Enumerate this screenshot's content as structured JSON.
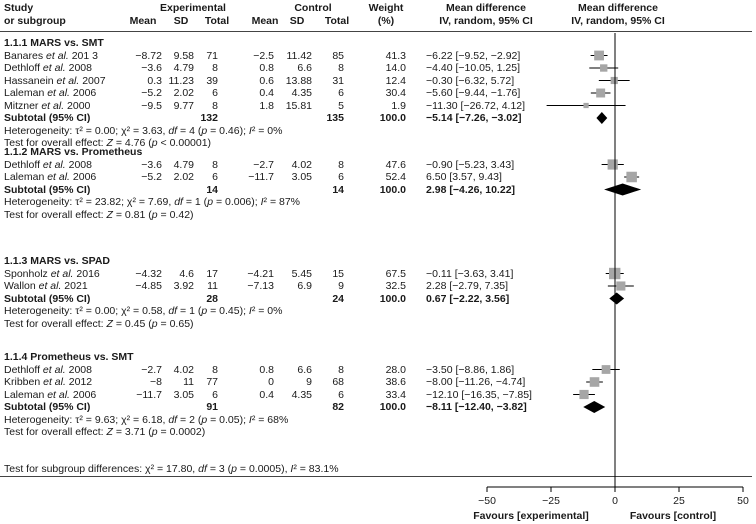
{
  "header": {
    "study_line1": "Study",
    "study_line2": "or subgroup",
    "experimental": "Experimental",
    "control": "Control",
    "mean": "Mean",
    "sd": "SD",
    "total": "Total",
    "weight_line1": "Weight",
    "weight_line2": "(%)",
    "md_line1": "Mean difference",
    "md_line2": "IV, random, 95% CI",
    "plot_line1": "Mean difference",
    "plot_line2": "IV, random, 95% CI"
  },
  "groups": [
    {
      "title": "1.1.1 MARS vs. SMT",
      "studies": [
        {
          "name": "Banares ",
          "etal": "et al.",
          "year": " 201 3",
          "e_mean": "−8.72",
          "e_sd": "9.58",
          "e_total": "71",
          "c_mean": "−2.5",
          "c_sd": "11.42",
          "c_total": "85",
          "weight": "41.3",
          "ci": "−6.22 [−9.52, −2.92]",
          "md": -6.22,
          "lo": -9.52,
          "hi": -2.92,
          "w": 41.3
        },
        {
          "name": "Dethloff ",
          "etal": "et al.",
          "year": " 2008",
          "e_mean": "−3.6",
          "e_sd": "4.79",
          "e_total": "8",
          "c_mean": "0.8",
          "c_sd": "6.6",
          "c_total": "8",
          "weight": "14.0",
          "ci": "−4.40 [−10.05, 1.25]",
          "md": -4.4,
          "lo": -10.05,
          "hi": 1.25,
          "w": 14.0
        },
        {
          "name": "Hassanein ",
          "etal": "et al.",
          "year": " 2007",
          "e_mean": "0.3",
          "e_sd": "11.23",
          "e_total": "39",
          "c_mean": "0.6",
          "c_sd": "13.88",
          "c_total": "31",
          "weight": "12.4",
          "ci": "−0.30 [−6.32, 5.72]",
          "md": -0.3,
          "lo": -6.32,
          "hi": 5.72,
          "w": 12.4
        },
        {
          "name": "Laleman ",
          "etal": "et al.",
          "year": " 2006",
          "e_mean": "−5.2",
          "e_sd": "2.02",
          "e_total": "6",
          "c_mean": "0.4",
          "c_sd": "4.35",
          "c_total": "6",
          "weight": "30.4",
          "ci": "−5.60 [−9.44, −1.76]",
          "md": -5.6,
          "lo": -9.44,
          "hi": -1.76,
          "w": 30.4
        },
        {
          "name": "Mitzner ",
          "etal": "et al.",
          "year": " 2000",
          "e_mean": "−9.5",
          "e_sd": "9.77",
          "e_total": "8",
          "c_mean": "1.8",
          "c_sd": "15.81",
          "c_total": "5",
          "weight": "1.9",
          "ci": "−11.30 [−26.72, 4.12]",
          "md": -11.3,
          "lo": -26.72,
          "hi": 4.12,
          "w": 1.9
        }
      ],
      "subtotal": {
        "label": "Subtotal (95% CI)",
        "e_total": "132",
        "c_total": "135",
        "weight": "100.0",
        "ci": "−5.14 [−7.26, −3.02]",
        "md": -5.14,
        "lo": -7.26,
        "hi": -3.02
      },
      "het_a": "Heterogeneity: τ² = 0.00; χ² = 3.63, ",
      "het_df": "df",
      "het_b": " = 4 (",
      "het_p": "p",
      "het_c": " = 0.46); ",
      "het_i": "I",
      "het_d": "² = 0%",
      "eff_a": "Test for overall effect: ",
      "eff_z": "Z",
      "eff_b": " = 4.76 (",
      "eff_p": "p",
      "eff_c": " < 0.00001)"
    },
    {
      "title": "1.1.2 MARS vs. Prometheus",
      "studies": [
        {
          "name": "Dethloff ",
          "etal": "et al.",
          "year": " 2008",
          "e_mean": "−3.6",
          "e_sd": "4.79",
          "e_total": "8",
          "c_mean": "−2.7",
          "c_sd": "4.02",
          "c_total": "8",
          "weight": "47.6",
          "ci": "−0.90 [−5.23, 3.43]",
          "md": -0.9,
          "lo": -5.23,
          "hi": 3.43,
          "w": 47.6
        },
        {
          "name": "Laleman ",
          "etal": "et al.",
          "year": " 2006",
          "e_mean": "−5.2",
          "e_sd": "2.02",
          "e_total": "6",
          "c_mean": "−11.7",
          "c_sd": "3.05",
          "c_total": "6",
          "weight": "52.4",
          "ci": "6.50 [3.57, 9.43]",
          "md": 6.5,
          "lo": 3.57,
          "hi": 9.43,
          "w": 52.4
        }
      ],
      "subtotal": {
        "label": "Subtotal (95% CI)",
        "e_total": "14",
        "c_total": "14",
        "weight": "100.0",
        "ci": "2.98 [−4.26, 10.22]",
        "md": 2.98,
        "lo": -4.26,
        "hi": 10.22
      },
      "het_a": "Heterogeneity: τ² = 23.82; χ² = 7.69, ",
      "het_df": "df",
      "het_b": " = 1 (",
      "het_p": "p",
      "het_c": " = 0.006); ",
      "het_i": "I",
      "het_d": "² = 87%",
      "eff_a": "Test for overall effect: ",
      "eff_z": "Z",
      "eff_b": " = 0.81 (",
      "eff_p": "p",
      "eff_c": " = 0.42)"
    },
    {
      "title": "1.1.3 MARS vs. SPAD",
      "studies": [
        {
          "name": "Sponholz ",
          "etal": "et al.",
          "year": " 2016",
          "e_mean": "−4.32",
          "e_sd": "4.6",
          "e_total": "17",
          "c_mean": "−4.21",
          "c_sd": "5.45",
          "c_total": "15",
          "weight": "67.5",
          "ci": "−0.11 [−3.63, 3.41]",
          "md": -0.11,
          "lo": -3.63,
          "hi": 3.41,
          "w": 67.5
        },
        {
          "name": "Wallon ",
          "etal": "et al.",
          "year": " 2021",
          "e_mean": "−4.85",
          "e_sd": "3.92",
          "e_total": "11",
          "c_mean": "−7.13",
          "c_sd": "6.9",
          "c_total": "9",
          "weight": "32.5",
          "ci": "2.28 [−2.79, 7.35]",
          "md": 2.28,
          "lo": -2.79,
          "hi": 7.35,
          "w": 32.5
        }
      ],
      "subtotal": {
        "label": "Subtotal (95% CI)",
        "e_total": "28",
        "c_total": "24",
        "weight": "100.0",
        "ci": "0.67 [−2.22, 3.56]",
        "md": 0.67,
        "lo": -2.22,
        "hi": 3.56
      },
      "het_a": "Heterogeneity: τ² = 0.00; χ² = 0.58, ",
      "het_df": "df",
      "het_b": " = 1 (",
      "het_p": "p",
      "het_c": " = 0.45); ",
      "het_i": "I",
      "het_d": "² = 0%",
      "eff_a": "Test for overall effect: ",
      "eff_z": "Z",
      "eff_b": " = 0.45 (",
      "eff_p": "p",
      "eff_c": " = 0.65)"
    },
    {
      "title": "1.1.4 Prometheus vs. SMT",
      "studies": [
        {
          "name": "Dethloff ",
          "etal": "et al.",
          "year": " 2008",
          "e_mean": "−2.7",
          "e_sd": "4.02",
          "e_total": "8",
          "c_mean": "0.8",
          "c_sd": "6.6",
          "c_total": "8",
          "weight": "28.0",
          "ci": "−3.50 [−8.86, 1.86]",
          "md": -3.5,
          "lo": -8.86,
          "hi": 1.86,
          "w": 28.0
        },
        {
          "name": "Kribben ",
          "etal": "et al.",
          "year": " 2012",
          "e_mean": "−8",
          "e_sd": "11",
          "e_total": "77",
          "c_mean": "0",
          "c_sd": "9",
          "c_total": "68",
          "weight": "38.6",
          "ci": "−8.00 [−11.26, −4.74]",
          "md": -8.0,
          "lo": -11.26,
          "hi": -4.74,
          "w": 38.6
        },
        {
          "name": "Laleman ",
          "etal": "et al.",
          "year": " 2006",
          "e_mean": "−11.7",
          "e_sd": "3.05",
          "e_total": "6",
          "c_mean": "0.4",
          "c_sd": "4.35",
          "c_total": "6",
          "weight": "33.4",
          "ci": "−12.10 [−16.35, −7.85]",
          "md": -12.1,
          "lo": -16.35,
          "hi": -7.85,
          "w": 33.4
        }
      ],
      "subtotal": {
        "label": "Subtotal (95% CI)",
        "e_total": "91",
        "c_total": "82",
        "weight": "100.0",
        "ci": "−8.11 [−12.40, −3.82]",
        "md": -8.11,
        "lo": -12.4,
        "hi": -3.82
      },
      "het_a": "Heterogeneity: τ² = 9.63; χ² = 6.18, ",
      "het_df": "df",
      "het_b": " = 2 (",
      "het_p": "p",
      "het_c": " = 0.05); ",
      "het_i": "I",
      "het_d": "² = 68%",
      "eff_a": "Test for overall effect: ",
      "eff_z": "Z",
      "eff_b": " = 3.71 (",
      "eff_p": "p",
      "eff_c": " = 0.0002)"
    }
  ],
  "subgroup_test": {
    "a": "Test for subgroup differences: χ² = 17.80, ",
    "df": "df",
    "b": " = 3 (",
    "p": "p",
    "c": " = 0.0005), ",
    "i": "I",
    "d": "² = 83.1%"
  },
  "axis": {
    "ticks": [
      "−50",
      "−25",
      "0",
      "25",
      "50"
    ],
    "favours_left": "Favours [experimental]",
    "favours_right": "Favours [control]"
  },
  "colors": {
    "square": "#a6a6a6",
    "diamond": "#000000",
    "line": "#000000"
  },
  "chart_data": {
    "type": "forest",
    "xlim": [
      -50,
      50
    ],
    "xticks": [
      -50,
      -25,
      0,
      25,
      50
    ],
    "xlabel_left": "Favours [experimental]",
    "xlabel_right": "Favours [control]",
    "title": "Mean difference IV, random, 95% CI"
  }
}
